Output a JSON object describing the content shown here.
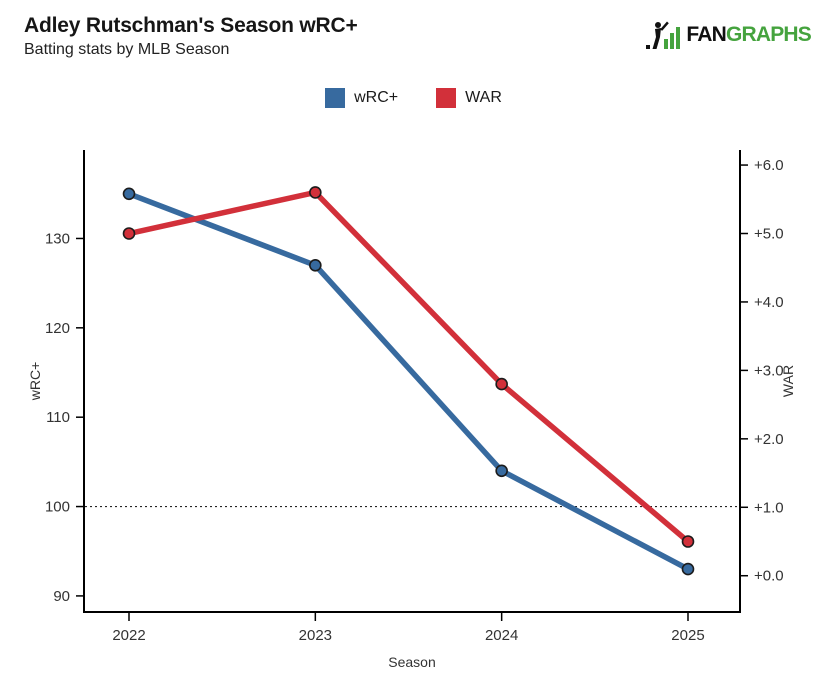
{
  "header": {
    "title": "Adley Rutschman's Season wRC+",
    "subtitle": "Batting stats by MLB Season",
    "logo": {
      "fan": "FAN",
      "graphs": "GRAPHS",
      "green": "#45A33E",
      "black": "#111111"
    }
  },
  "legend": [
    {
      "label": "wRC+",
      "color": "#376A9F"
    },
    {
      "label": "WAR",
      "color": "#D2303A"
    }
  ],
  "chart_data": {
    "type": "line",
    "title": "Adley Rutschman's Season wRC+",
    "subtitle": "Batting stats by MLB Season",
    "categories": [
      "2022",
      "2023",
      "2024",
      "2025"
    ],
    "xlabel": "Season",
    "series": [
      {
        "name": "wRC+",
        "axis": "left",
        "color": "#376A9F",
        "values": [
          135,
          127,
          104,
          93
        ]
      },
      {
        "name": "WAR",
        "axis": "right",
        "color": "#D2303A",
        "values": [
          5.0,
          5.6,
          2.8,
          0.5
        ]
      }
    ],
    "left_axis": {
      "label": "wRC+",
      "ticks": [
        90,
        100,
        110,
        120,
        130
      ],
      "range": [
        88.2,
        139.9
      ]
    },
    "right_axis": {
      "label": "WAR",
      "ticks": [
        "+0.0",
        "+1.0",
        "+2.0",
        "+3.0",
        "+4.0",
        "+5.0",
        "+6.0"
      ],
      "tick_values": [
        0,
        1,
        2,
        3,
        4,
        5,
        6
      ],
      "range": [
        -0.53,
        6.22
      ]
    },
    "reference_line": {
      "axis": "left",
      "value": 100,
      "style": "dotted"
    },
    "grid": false,
    "legend_position": "top-center",
    "point_outline": "#1c1c1c",
    "axis_color": "#000000",
    "tick_text_color": "#333333"
  }
}
